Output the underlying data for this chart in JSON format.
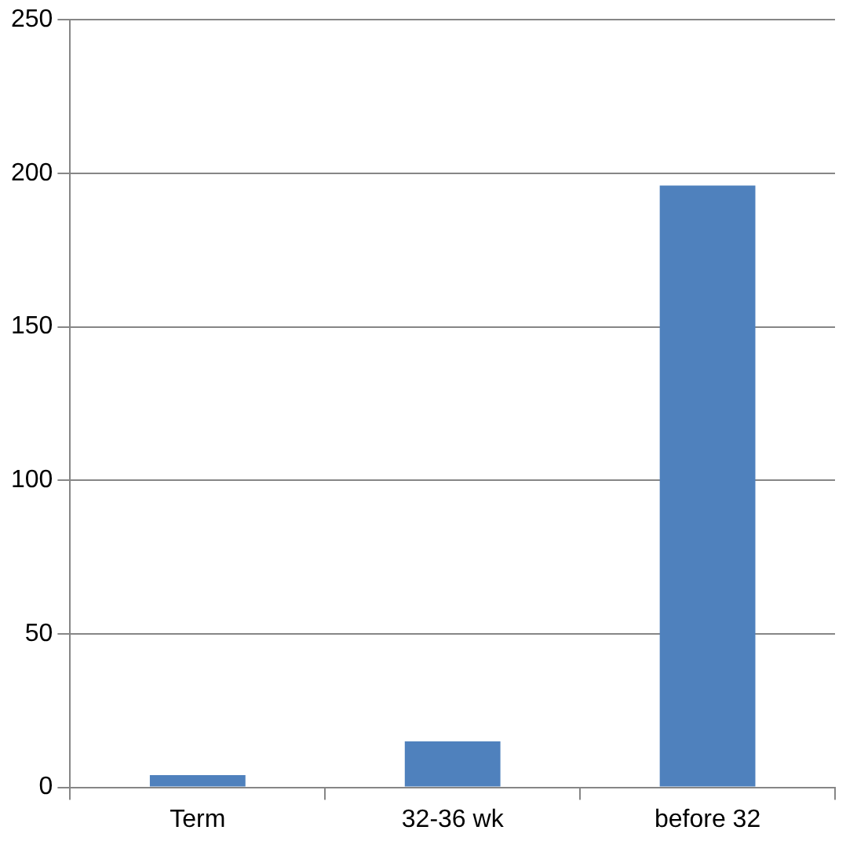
{
  "chart_data": {
    "type": "bar",
    "categories": [
      "Term",
      "32-36 wk",
      "before 32"
    ],
    "values": [
      4,
      15,
      196
    ],
    "color": "#4f81bd",
    "ylim": [
      0,
      250
    ],
    "yticks": [
      0,
      50,
      100,
      150,
      200,
      250
    ],
    "grid": "y",
    "legend": false
  }
}
